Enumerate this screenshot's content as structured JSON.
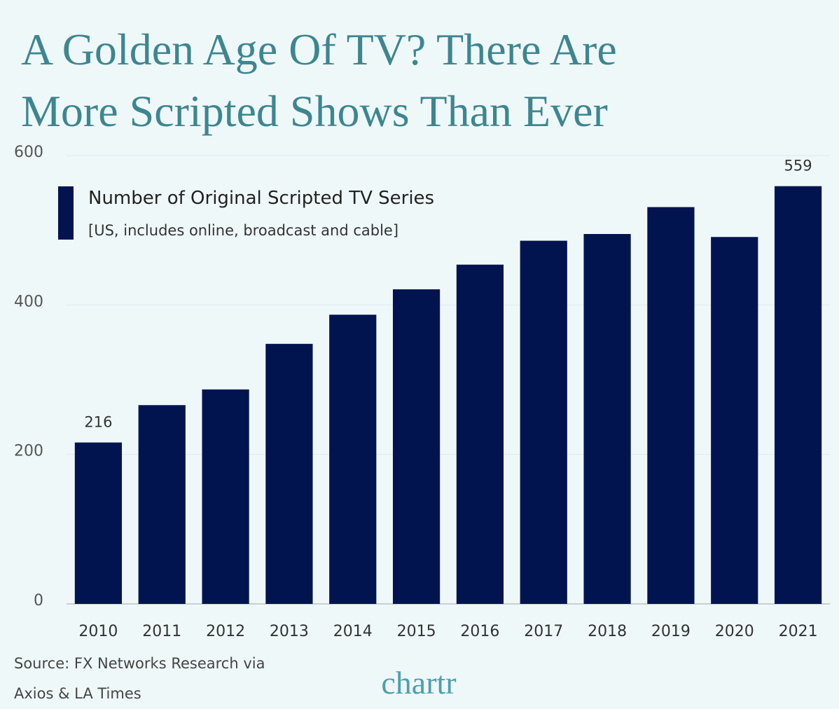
{
  "chart_data": {
    "type": "bar",
    "title": [
      "A Golden Age Of TV? There Are",
      "More Scripted Shows Than Ever"
    ],
    "subtitle": "[US, includes online, broadcast and cable]",
    "source": [
      "Source: FX Networks Research via",
      "Axios & LA Times"
    ],
    "brand": "chartr",
    "categories": [
      "2010",
      "2011",
      "2012",
      "2013",
      "2014",
      "2015",
      "2016",
      "2017",
      "2018",
      "2019",
      "2020",
      "2021"
    ],
    "series": [
      {
        "name": "Number of Original Scripted TV Series",
        "color": "#021450",
        "values": [
          216,
          266,
          287,
          348,
          387,
          421,
          454,
          486,
          495,
          531,
          491,
          559
        ],
        "value_labels": [
          "216",
          null,
          null,
          null,
          null,
          null,
          null,
          null,
          null,
          null,
          null,
          "559"
        ]
      }
    ],
    "ylim": [
      0,
      600
    ],
    "yticks": [
      0,
      200,
      400,
      600
    ],
    "grid": true
  }
}
